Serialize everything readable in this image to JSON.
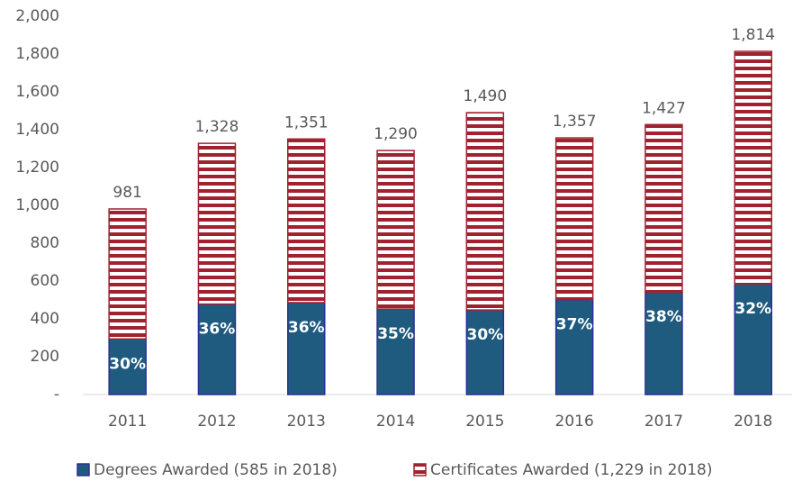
{
  "chart_data": {
    "type": "stacked_bar",
    "categories": [
      "2011",
      "2012",
      "2013",
      "2014",
      "2015",
      "2016",
      "2017",
      "2018"
    ],
    "series": [
      {
        "name": "Degrees Awarded (585 in 2018)",
        "color": "#1f5b7e",
        "border": "#2b2f9a",
        "values": [
          294,
          478,
          486,
          452,
          447,
          502,
          542,
          585
        ],
        "share_labels": [
          "30%",
          "36%",
          "36%",
          "35%",
          "30%",
          "37%",
          "38%",
          "32%"
        ]
      },
      {
        "name": "Certificates Awarded (1,229 in 2018)",
        "color": "#a1222f",
        "border": "#a1222f",
        "values": [
          687,
          850,
          865,
          838,
          1043,
          855,
          885,
          1229
        ]
      }
    ],
    "total_labels": [
      "981",
      "1,328",
      "1,351",
      "1,290",
      "1,490",
      "1,357",
      "1,427",
      "1,814"
    ],
    "ylim": [
      0,
      2000
    ],
    "yticks": [
      {
        "value": 0,
        "label": "-"
      },
      200,
      400,
      600,
      800,
      {
        "value": 1000,
        "label": "1,000"
      },
      {
        "value": 1200,
        "label": "1,200"
      },
      {
        "value": 1400,
        "label": "1,400"
      },
      {
        "value": 1600,
        "label": "1,600"
      },
      {
        "value": 1800,
        "label": "1,800"
      },
      {
        "value": 2000,
        "label": "2,000"
      }
    ],
    "grid": false,
    "legend": "bottom"
  }
}
